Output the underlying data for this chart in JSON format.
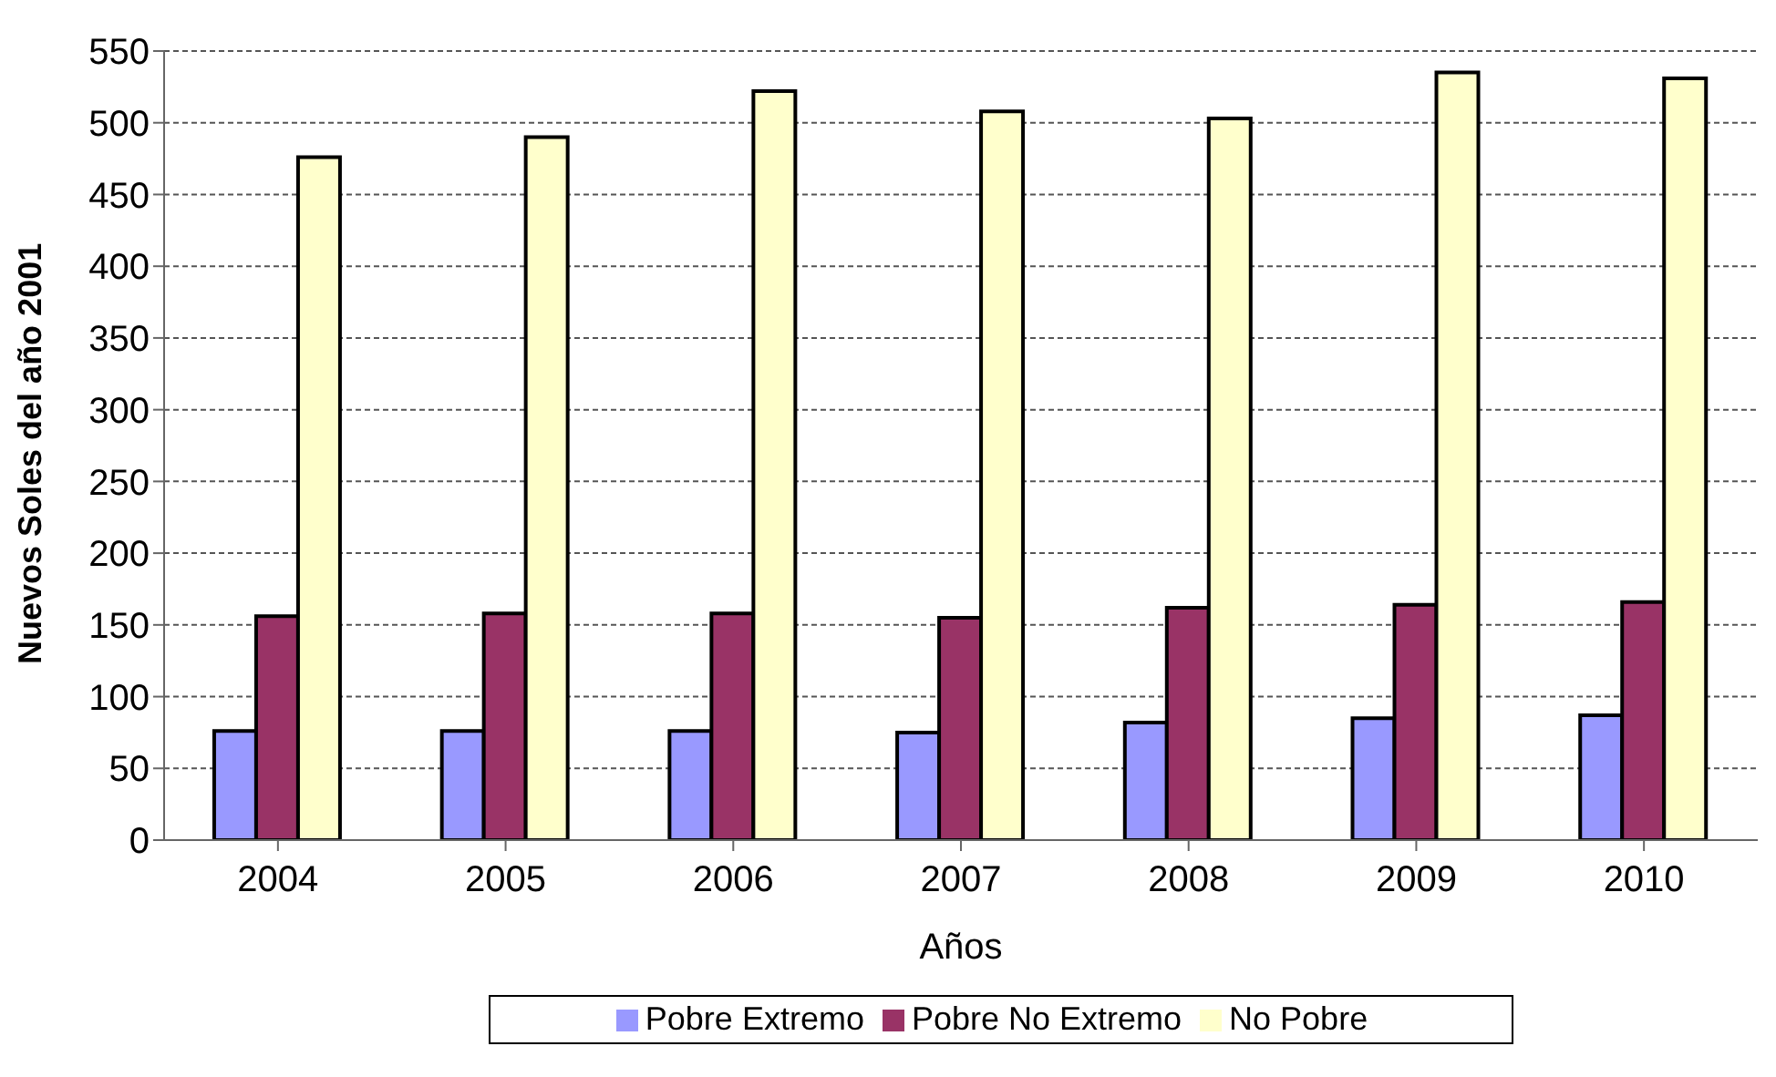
{
  "chart_data": {
    "type": "bar",
    "xlabel": "Años",
    "ylabel": "Nuevos Soles del año 2001",
    "categories": [
      "2004",
      "2005",
      "2006",
      "2007",
      "2008",
      "2009",
      "2010"
    ],
    "series": [
      {
        "name": "Pobre Extremo",
        "color": "#9999ff",
        "values": [
          76,
          76,
          76,
          75,
          82,
          85,
          87
        ]
      },
      {
        "name": "Pobre No Extremo",
        "color": "#993366",
        "values": [
          156,
          158,
          158,
          155,
          162,
          164,
          166
        ]
      },
      {
        "name": "No Pobre",
        "color": "#ffffcc",
        "values": [
          476,
          490,
          522,
          508,
          503,
          535,
          531
        ]
      }
    ],
    "ylim": [
      0,
      550
    ],
    "yticks": [
      0,
      50,
      100,
      150,
      200,
      250,
      300,
      350,
      400,
      450,
      500,
      550
    ],
    "grid": "y",
    "legend": "bottom"
  }
}
